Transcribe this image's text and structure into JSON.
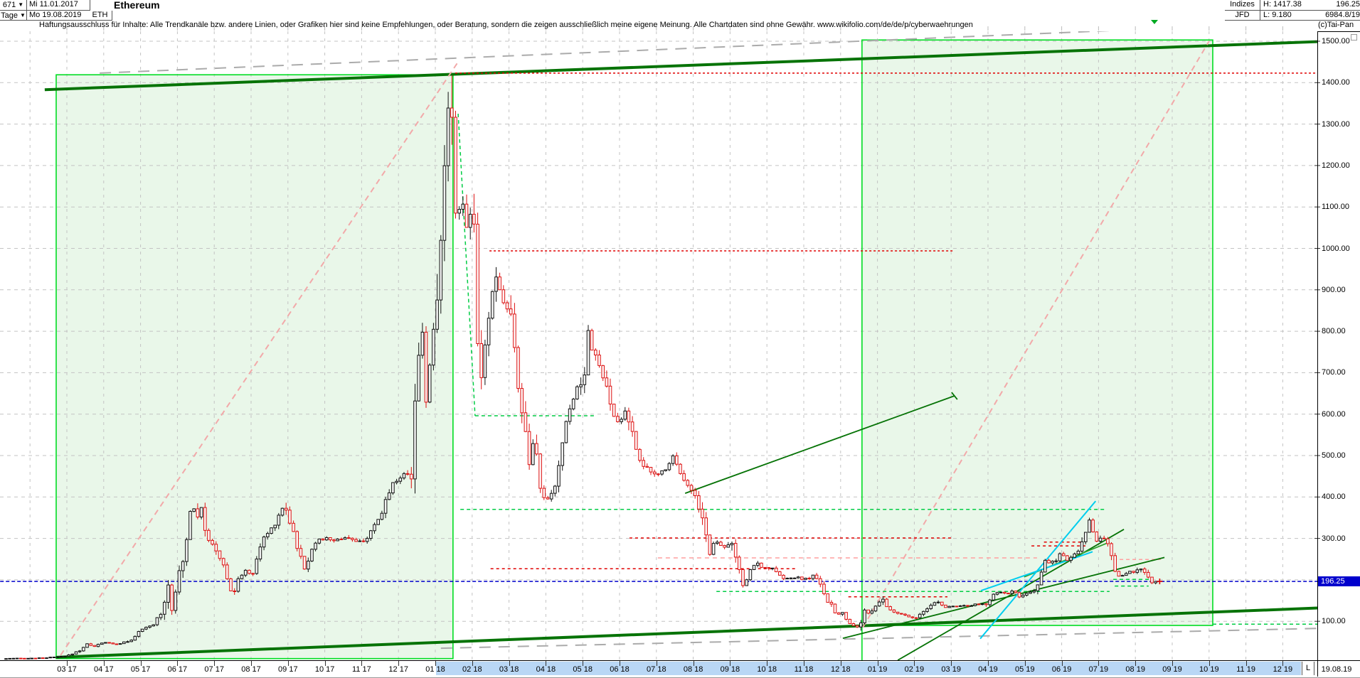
{
  "window": {
    "left_table": {
      "id": "671",
      "id_arrow": "▼",
      "period": "Tage",
      "period_arrow": "▼",
      "date_start": "Mi 11.01.2017",
      "date_end": "Mo 19.08.2019",
      "symbol": "ETH",
      "title": "Ethereum"
    },
    "right_table": {
      "r1c1": "Indizes",
      "r1c2": "H: 1417.38",
      "r1c3": "196.25",
      "r2c1": "JFD",
      "r2c2": "L: 9.180",
      "r2c3": "6984.8/19",
      "copyright": "(c)Tai-Pan"
    },
    "disclaimer": "Haftungsausschluss für Inhalte: Alle Trendkanäle bzw. andere Linien, oder Grafiken hier sind keine Empfehlungen, oder Beratung, sondern die zeigen ausschließlich meine eigene Meinung. Alle Chartdaten sind ohne Gewähr.  www.wikifolio.com/de/de/p/cyberwaehrungen"
  },
  "axes": {
    "y_labels": [
      {
        "value": 1500,
        "label": "1500.00"
      },
      {
        "value": 1400,
        "label": "1400.00"
      },
      {
        "value": 1300,
        "label": "1300.00"
      },
      {
        "value": 1200,
        "label": "1200.00"
      },
      {
        "value": 1100,
        "label": "1100.00"
      },
      {
        "value": 1000,
        "label": "1000.00"
      },
      {
        "value": 900,
        "label": "900.00"
      },
      {
        "value": 800,
        "label": "800.00"
      },
      {
        "value": 700,
        "label": "700.00"
      },
      {
        "value": 600,
        "label": "600.00"
      },
      {
        "value": 500,
        "label": "500.00"
      },
      {
        "value": 400,
        "label": "400.00"
      },
      {
        "value": 300,
        "label": "300.00"
      },
      {
        "value": 100,
        "label": "100.00"
      }
    ],
    "x_labels": [
      "03 17",
      "04 17",
      "05 17",
      "06 17",
      "07 17",
      "08 17",
      "09 17",
      "10 17",
      "11 17",
      "12 17",
      "01 18",
      "02 18",
      "03 18",
      "04 18",
      "05 18",
      "06 18",
      "07 18",
      "08 18",
      "09 18",
      "10 18",
      "11 18",
      "12 18",
      "01 19",
      "02 19",
      "03 19",
      "04 19",
      "05 19",
      "06 19",
      "07 19",
      "08 19",
      "09 19",
      "10 19",
      "11 19",
      "12 19"
    ],
    "highlight_band_labels": [
      "02 18",
      "12 19"
    ],
    "last_label_prefix": "L",
    "last_label_date": "19.08.19",
    "price_badge": "196.25"
  },
  "chart_data": {
    "type": "candlestick",
    "symbol": "ETH",
    "title": "Ethereum",
    "timeframe": "Tage (daily)",
    "date_range": [
      "11.01.2017",
      "19.08.2019"
    ],
    "y_range": [
      0,
      1520
    ],
    "high": 1417.38,
    "low": 9.18,
    "last": 196.25,
    "x_unit": "months_after_2017_03",
    "price_path": [
      [
        -1.65,
        10
      ],
      [
        -1.2,
        10.5
      ],
      [
        -0.8,
        11
      ],
      [
        -0.4,
        13
      ],
      [
        0,
        16
      ],
      [
        0.35,
        30
      ],
      [
        0.55,
        45
      ],
      [
        0.75,
        40
      ],
      [
        1.0,
        49
      ],
      [
        1.35,
        45
      ],
      [
        1.7,
        52
      ],
      [
        2.0,
        78
      ],
      [
        2.35,
        92
      ],
      [
        2.6,
        130
      ],
      [
        2.75,
        190
      ],
      [
        2.85,
        135
      ],
      [
        3.0,
        200
      ],
      [
        3.2,
        260
      ],
      [
        3.4,
        405
      ],
      [
        3.5,
        345
      ],
      [
        3.65,
        385
      ],
      [
        3.8,
        295
      ],
      [
        4.0,
        280
      ],
      [
        4.2,
        245
      ],
      [
        4.5,
        160
      ],
      [
        4.7,
        210
      ],
      [
        4.85,
        225
      ],
      [
        5.0,
        205
      ],
      [
        5.3,
        295
      ],
      [
        5.6,
        330
      ],
      [
        5.9,
        383
      ],
      [
        6.1,
        330
      ],
      [
        6.3,
        265
      ],
      [
        6.45,
        225
      ],
      [
        6.7,
        290
      ],
      [
        7.0,
        300
      ],
      [
        7.3,
        295
      ],
      [
        7.6,
        305
      ],
      [
        7.9,
        288
      ],
      [
        8.2,
        305
      ],
      [
        8.5,
        350
      ],
      [
        8.8,
        430
      ],
      [
        9.0,
        445
      ],
      [
        9.2,
        455
      ],
      [
        9.35,
        470
      ],
      [
        9.5,
        700
      ],
      [
        9.65,
        815
      ],
      [
        9.75,
        645
      ],
      [
        9.9,
        745
      ],
      [
        10.05,
        880
      ],
      [
        10.2,
        1150
      ],
      [
        10.3,
        1300
      ],
      [
        10.4,
        1400
      ],
      [
        10.5,
        1150
      ],
      [
        10.6,
        1040
      ],
      [
        10.7,
        1145
      ],
      [
        10.85,
        1060
      ],
      [
        11.0,
        1105
      ],
      [
        11.1,
        910
      ],
      [
        11.2,
        610
      ],
      [
        11.35,
        780
      ],
      [
        11.5,
        855
      ],
      [
        11.6,
        965
      ],
      [
        11.75,
        900
      ],
      [
        11.9,
        860
      ],
      [
        12.05,
        840
      ],
      [
        12.2,
        700
      ],
      [
        12.4,
        580
      ],
      [
        12.55,
        480
      ],
      [
        12.7,
        540
      ],
      [
        12.85,
        420
      ],
      [
        13.0,
        390
      ],
      [
        13.2,
        405
      ],
      [
        13.4,
        505
      ],
      [
        13.6,
        600
      ],
      [
        13.8,
        660
      ],
      [
        14.0,
        675
      ],
      [
        14.15,
        805
      ],
      [
        14.3,
        745
      ],
      [
        14.5,
        705
      ],
      [
        14.7,
        640
      ],
      [
        14.85,
        590
      ],
      [
        15.0,
        578
      ],
      [
        15.2,
        615
      ],
      [
        15.4,
        525
      ],
      [
        15.6,
        485
      ],
      [
        15.8,
        460
      ],
      [
        16.0,
        452
      ],
      [
        16.2,
        465
      ],
      [
        16.45,
        498
      ],
      [
        16.7,
        455
      ],
      [
        16.9,
        420
      ],
      [
        17.1,
        395
      ],
      [
        17.3,
        330
      ],
      [
        17.45,
        262
      ],
      [
        17.6,
        300
      ],
      [
        17.75,
        285
      ],
      [
        17.9,
        280
      ],
      [
        18.05,
        292
      ],
      [
        18.2,
        235
      ],
      [
        18.35,
        180
      ],
      [
        18.5,
        215
      ],
      [
        18.7,
        245
      ],
      [
        18.85,
        228
      ],
      [
        19.0,
        233
      ],
      [
        19.2,
        222
      ],
      [
        19.4,
        205
      ],
      [
        19.6,
        203
      ],
      [
        19.8,
        206
      ],
      [
        20.0,
        200
      ],
      [
        20.15,
        205
      ],
      [
        20.3,
        212
      ],
      [
        20.45,
        185
      ],
      [
        20.6,
        152
      ],
      [
        20.75,
        138
      ],
      [
        20.9,
        115
      ],
      [
        21.05,
        120
      ],
      [
        21.2,
        95
      ],
      [
        21.35,
        90
      ],
      [
        21.5,
        86
      ],
      [
        21.65,
        128
      ],
      [
        21.8,
        116
      ],
      [
        22.0,
        140
      ],
      [
        22.15,
        152
      ],
      [
        22.3,
        128
      ],
      [
        22.5,
        120
      ],
      [
        22.7,
        116
      ],
      [
        22.9,
        107
      ],
      [
        23.1,
        112
      ],
      [
        23.3,
        124
      ],
      [
        23.5,
        143
      ],
      [
        23.65,
        147
      ],
      [
        23.8,
        134
      ],
      [
        24.0,
        137
      ],
      [
        24.2,
        138
      ],
      [
        24.4,
        136
      ],
      [
        24.6,
        140
      ],
      [
        24.8,
        141
      ],
      [
        25.0,
        142
      ],
      [
        25.1,
        166
      ],
      [
        25.3,
        170
      ],
      [
        25.5,
        168
      ],
      [
        25.7,
        172
      ],
      [
        25.85,
        158
      ],
      [
        26.0,
        163
      ],
      [
        26.2,
        172
      ],
      [
        26.4,
        195
      ],
      [
        26.55,
        245
      ],
      [
        26.7,
        240
      ],
      [
        26.85,
        250
      ],
      [
        27.0,
        268
      ],
      [
        27.15,
        248
      ],
      [
        27.3,
        258
      ],
      [
        27.5,
        278
      ],
      [
        27.65,
        320
      ],
      [
        27.8,
        355
      ],
      [
        27.9,
        295
      ],
      [
        28.0,
        292
      ],
      [
        28.15,
        305
      ],
      [
        28.3,
        272
      ],
      [
        28.45,
        225
      ],
      [
        28.6,
        205
      ],
      [
        28.75,
        215
      ],
      [
        28.9,
        220
      ],
      [
        29.0,
        218
      ],
      [
        29.15,
        228
      ],
      [
        29.3,
        212
      ],
      [
        29.42,
        195
      ],
      [
        29.5,
        188
      ],
      [
        29.6,
        196.25
      ]
    ],
    "key_points": [
      {
        "date": "11.01.2017",
        "price": 9.18,
        "note": "series low (L)"
      },
      {
        "date": "12.06.2017",
        "price": 415,
        "note": "June 2017 peak"
      },
      {
        "date": "13.01.2018",
        "price": 1417.38,
        "note": "all-time high (H)"
      },
      {
        "date": "06.02.2018",
        "price": 610,
        "note": "Feb 2018 crash low"
      },
      {
        "date": "05.05.2018",
        "price": 805,
        "note": "May 2018 rebound high"
      },
      {
        "date": "15.12.2018",
        "price": 86,
        "note": "Dec 2018 bear-market low"
      },
      {
        "date": "26.06.2019",
        "price": 355,
        "note": "June 2019 peak"
      },
      {
        "date": "19.08.2019",
        "price": 196.25,
        "note": "last close"
      }
    ],
    "overlays": {
      "channels": [
        {
          "name": "trend-channel-2017",
          "m": [
            -0.29,
            10.48
          ],
          "p": [
            10,
            1419
          ]
        },
        {
          "name": "trend-channel-2019",
          "m": [
            21.58,
            31.1
          ],
          "p": [
            90,
            1503
          ]
        }
      ],
      "lines": [
        {
          "name": "thick-resistance",
          "m1": -0.6,
          "p1": 1383,
          "m2": 35.1,
          "p2": 1503,
          "color": "trend_dark_green",
          "w": 4
        },
        {
          "name": "thick-support",
          "m1": -0.29,
          "p1": 13,
          "m2": 35.1,
          "p2": 136,
          "color": "trend_dark_green",
          "w": 4
        },
        {
          "name": "gray-channel-top",
          "m1": 0.89,
          "p1": 1423,
          "m2": 35.1,
          "p2": 1551,
          "color": "gray_trend",
          "w": 2,
          "dash": "16,11"
        },
        {
          "name": "gray-channel-bottom",
          "m1": 10.15,
          "p1": 35,
          "m2": 35.1,
          "p2": 85,
          "color": "gray_trend",
          "w": 2,
          "dash": "16,11"
        },
        {
          "name": "pink-parabola-2017",
          "m1": -0.17,
          "p1": 18,
          "m2": 10.64,
          "p2": 1453,
          "color": "pink",
          "w": 2,
          "dash": "8,6"
        },
        {
          "name": "pink-parabola-2019",
          "m1": 21.6,
          "p1": 85,
          "m2": 31.0,
          "p2": 1500,
          "color": "pink",
          "w": 2,
          "dash": "8,6"
        },
        {
          "name": "ath-level",
          "m1": 10.54,
          "p1": 1423,
          "m2": 33.94,
          "p2": 1423,
          "color": "red",
          "w": 1.5,
          "dash": "3,3"
        },
        {
          "name": "feb18-high-level",
          "m1": 11.47,
          "p1": 994,
          "m2": 24.05,
          "p2": 994,
          "color": "red",
          "w": 1.5,
          "dash": "3,3"
        },
        {
          "name": "green-drop-steep",
          "m1": 10.62,
          "p1": 1325,
          "m2": 11.08,
          "p2": 596,
          "color": "green_dash",
          "w": 1.5,
          "dash": "5,4"
        },
        {
          "name": "green-600-level",
          "m1": 11.08,
          "p1": 596,
          "m2": 14.36,
          "p2": 596,
          "color": "green_dash",
          "w": 1.5,
          "dash": "5,4"
        },
        {
          "name": "green-370-level",
          "m1": 10.68,
          "p1": 370,
          "m2": 28.22,
          "p2": 370,
          "color": "green_dash",
          "w": 1.5,
          "dash": "5,4"
        },
        {
          "name": "red-300-level",
          "m1": 15.27,
          "p1": 301,
          "m2": 24.05,
          "p2": 301,
          "color": "red",
          "w": 1.5,
          "dash": "4,4"
        },
        {
          "name": "salmon-253-level",
          "m1": 16.04,
          "p1": 253,
          "m2": 26.33,
          "p2": 253,
          "color": "salmon",
          "w": 1.5,
          "dash": "6,5"
        },
        {
          "name": "red-227-level",
          "m1": 11.5,
          "p1": 227,
          "m2": 19.77,
          "p2": 227,
          "color": "red",
          "w": 1.5,
          "dash": "4,4"
        },
        {
          "name": "current-price-line",
          "m1": -1.81,
          "p1": 196.25,
          "m2": 33.94,
          "p2": 196.25,
          "color": "blue",
          "w": 1.5,
          "dash": "5,3"
        },
        {
          "name": "green-172-level",
          "m1": 17.63,
          "p1": 172,
          "m2": 28.3,
          "p2": 172,
          "color": "green_dash",
          "w": 1.5,
          "dash": "5,4"
        },
        {
          "name": "red-159-level",
          "m1": 21.21,
          "p1": 159,
          "m2": 23.9,
          "p2": 159,
          "color": "red",
          "w": 1.5,
          "dash": "4,4"
        },
        {
          "name": "red-291-short",
          "m1": 26.52,
          "p1": 291,
          "m2": 27.58,
          "p2": 291,
          "color": "red",
          "w": 1.5,
          "dash": "4,4"
        },
        {
          "name": "red-282-short",
          "m1": 26.18,
          "p1": 282,
          "m2": 27.68,
          "p2": 282,
          "color": "red",
          "w": 1.5,
          "dash": "4,4"
        },
        {
          "name": "salmon-arc-aug19",
          "m1": 28.4,
          "p1": 249,
          "m2": 29.69,
          "p2": 249,
          "color": "salmon",
          "w": 1.5,
          "dash": "5,4"
        },
        {
          "name": "green-201-short",
          "m1": 28.4,
          "p1": 201,
          "m2": 29.46,
          "p2": 201,
          "color": "green_dash",
          "w": 1.5,
          "dash": "5,4"
        },
        {
          "name": "green-185-short",
          "m1": 28.44,
          "p1": 185,
          "m2": 29.36,
          "p2": 185,
          "color": "green_dash",
          "w": 1.5,
          "dash": "5,4"
        },
        {
          "name": "green-93-right",
          "m1": 31.1,
          "p1": 93,
          "m2": 35.1,
          "p2": 93,
          "color": "green_dash",
          "w": 1.5,
          "dash": "5,4"
        },
        {
          "name": "uptrend-2019-a",
          "m1": 16.78,
          "p1": 409,
          "m2": 24.09,
          "p2": 644,
          "color": "trend_dark_green",
          "w": 1.8,
          "end_tick": true
        },
        {
          "name": "uptrend-2019-b",
          "m1": 21.06,
          "p1": 59,
          "m2": 29.79,
          "p2": 254,
          "color": "trend_dark_green",
          "w": 1.8
        },
        {
          "name": "uptrend-2019-c",
          "m1": 22.55,
          "p1": 6,
          "m2": 28.69,
          "p2": 322,
          "color": "trend_dark_green",
          "w": 1.8
        },
        {
          "name": "uptrend-2019-d",
          "m1": 25.98,
          "p1": 207,
          "m2": 28.3,
          "p2": 291,
          "color": "mid_green",
          "w": 1.8
        },
        {
          "name": "cyan-steep",
          "m1": 24.79,
          "p1": 58,
          "m2": 27.92,
          "p2": 390,
          "color": "cyan",
          "w": 2
        },
        {
          "name": "cyan-shallow",
          "m1": 24.81,
          "p1": 174,
          "m2": 27.84,
          "p2": 268,
          "color": "cyan",
          "w": 2
        }
      ],
      "marker_triangle_m": 29.52,
      "last_close_cross": {
        "m": 29.66,
        "p": 196.25
      }
    },
    "colors": {
      "up": "#111111",
      "down": "#dd1111",
      "box_fill": "#e9f7e9",
      "box_border": "#00dd22",
      "trend_dark_green": "#067306",
      "mid_green": "#2ca02c",
      "pink": "#f2a9a9",
      "red": "#e00000",
      "salmon": "#ff9f9f",
      "green_dash": "#00cc44",
      "blue": "#0000cc",
      "cyan": "#00cdee",
      "grid": "#c3c3c3",
      "gray_trend": "#ababab"
    }
  }
}
